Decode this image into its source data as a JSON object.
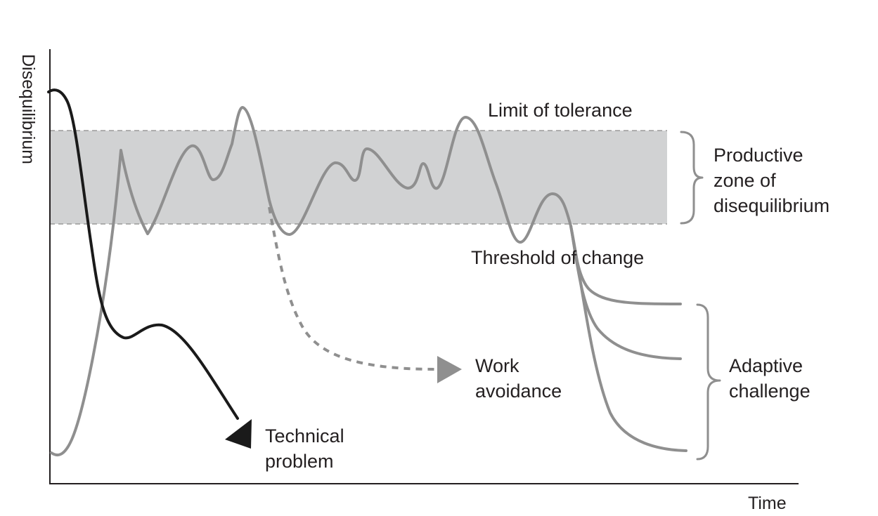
{
  "axes": {
    "x_label": "Time",
    "y_label": "Disequilibrium"
  },
  "bands": {
    "upper_label": "Limit of tolerance",
    "lower_label": "Threshold of change"
  },
  "zone": {
    "line1": "Productive",
    "line2": "zone of",
    "line3": "disequilibrium"
  },
  "outcomes": {
    "technical": {
      "line1": "Technical",
      "line2": "problem"
    },
    "avoidance": {
      "line1": "Work",
      "line2": "avoidance"
    },
    "adaptive": {
      "line1": "Adaptive",
      "line2": "challenge"
    }
  },
  "colors": {
    "zone_fill": "#d1d2d3",
    "curve_gray": "#8f8f8f",
    "curve_black": "#1a1a1a",
    "text": "#231f20"
  }
}
